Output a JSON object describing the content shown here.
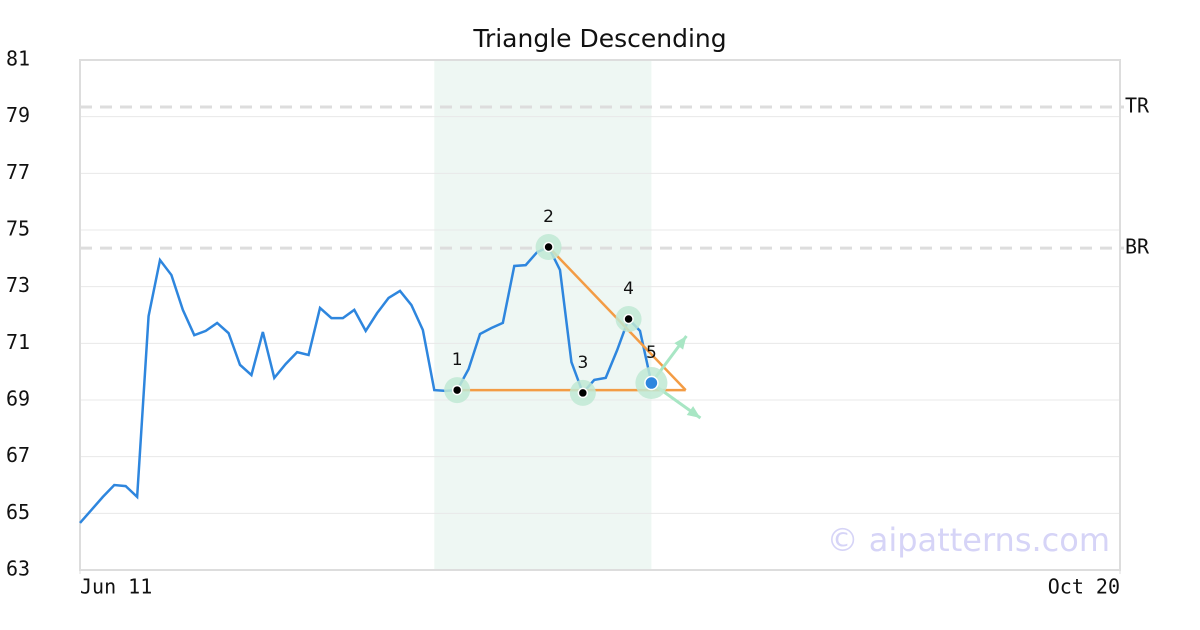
{
  "chart_data": {
    "type": "line",
    "title": "Triangle Descending",
    "x": [
      0,
      1,
      2,
      3,
      4,
      5,
      6,
      7,
      8,
      9,
      10,
      11,
      12,
      13,
      14,
      15,
      16,
      17,
      18,
      19,
      20,
      21,
      22,
      23,
      24,
      25,
      26,
      27,
      28,
      29,
      30,
      31,
      32,
      33,
      34,
      35,
      36,
      37,
      38,
      39,
      40,
      41,
      42,
      43,
      44,
      45,
      46,
      47,
      48,
      49,
      50
    ],
    "series": [
      {
        "color": "#2e86de",
        "values": [
          64.66,
          65.12,
          65.58,
          66.0,
          65.96,
          65.58,
          71.96,
          73.94,
          73.41,
          72.18,
          71.29,
          71.44,
          71.72,
          71.36,
          70.24,
          69.88,
          71.4,
          69.78,
          70.27,
          70.69,
          70.59,
          72.25,
          71.89,
          71.89,
          72.18,
          71.44,
          72.07,
          72.6,
          72.85,
          72.35,
          71.47,
          69.35,
          69.32,
          69.35,
          70.09,
          71.33,
          71.54,
          71.72,
          73.73,
          73.76,
          74.22,
          74.4,
          73.59,
          70.34,
          69.25,
          69.71,
          69.78,
          70.76,
          71.86,
          71.44,
          69.6
        ]
      }
    ],
    "xlim": [
      0,
      91
    ],
    "xticks": [
      {
        "value": 0,
        "label": "Jun 11"
      },
      {
        "value": 91,
        "label": "Oct 20"
      }
    ],
    "ylim": [
      63,
      81
    ],
    "yticks": [
      63,
      65,
      67,
      69,
      71,
      73,
      75,
      77,
      79,
      81
    ],
    "grid": true,
    "highlight": {
      "x": [
        31,
        50
      ],
      "color": "#eef7f3"
    },
    "reference_lines": [
      {
        "label": "TR",
        "value": 79.34
      },
      {
        "label": "BR",
        "value": 74.36
      }
    ],
    "pattern": {
      "color": "#f39c45",
      "points": [
        {
          "label": "1",
          "x": 33,
          "y": 69.35
        },
        {
          "label": "2",
          "x": 41,
          "y": 74.4
        },
        {
          "label": "3",
          "x": 44,
          "y": 69.25
        },
        {
          "label": "4",
          "x": 48,
          "y": 71.86
        },
        {
          "label": "5",
          "x": 50,
          "y": 69.6
        }
      ],
      "lines": [
        {
          "x": [
            33,
            53
          ],
          "y": [
            69.35,
            69.35
          ]
        },
        {
          "x": [
            41,
            53
          ],
          "y": [
            74.4,
            69.35
          ]
        }
      ]
    },
    "watermark": "© aipatterns.com"
  }
}
